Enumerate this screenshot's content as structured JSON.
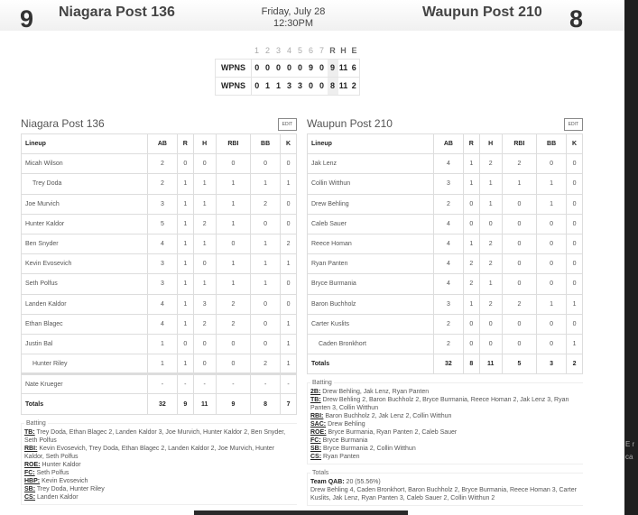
{
  "header": {
    "home_score": "9",
    "home_team": "Niagara Post 136",
    "away_team": "Waupun Post 210",
    "away_score": "8",
    "date": "Friday, July 28",
    "time": "12:30PM"
  },
  "linescore": {
    "innings": [
      "1",
      "2",
      "3",
      "4",
      "5",
      "6",
      "7"
    ],
    "totals_headers": [
      "R",
      "H",
      "E"
    ],
    "rows": [
      {
        "team": "WPNS",
        "innings": [
          "0",
          "0",
          "0",
          "0",
          "0",
          "9",
          "0"
        ],
        "R": "9",
        "H": "11",
        "E": "6"
      },
      {
        "team": "WPNS",
        "innings": [
          "0",
          "1",
          "1",
          "3",
          "3",
          "0",
          "0"
        ],
        "R": "8",
        "H": "11",
        "E": "2"
      }
    ]
  },
  "columns": [
    "Lineup",
    "AB",
    "R",
    "H",
    "RBI",
    "BB",
    "K"
  ],
  "edit_label": "EDIT",
  "home": {
    "title": "Niagara Post 136",
    "rows": [
      [
        "Micah Wilson",
        "2",
        "0",
        "0",
        "0",
        "0",
        "0"
      ],
      [
        "Trey Doda",
        "2",
        "1",
        "1",
        "1",
        "1",
        "1"
      ],
      [
        "Joe Murvich",
        "3",
        "1",
        "1",
        "1",
        "2",
        "0"
      ],
      [
        "Hunter Kaldor",
        "5",
        "1",
        "2",
        "1",
        "0",
        "0"
      ],
      [
        "Ben Snyder",
        "4",
        "1",
        "1",
        "0",
        "1",
        "2"
      ],
      [
        "Kevin Evosevich",
        "3",
        "1",
        "0",
        "1",
        "1",
        "1"
      ],
      [
        "Seth Polfus",
        "3",
        "1",
        "1",
        "1",
        "1",
        "0"
      ],
      [
        "Landen Kaldor",
        "4",
        "1",
        "3",
        "2",
        "0",
        "0"
      ],
      [
        "Ethan Blagec",
        "4",
        "1",
        "2",
        "2",
        "0",
        "1"
      ],
      [
        "Justin Bal",
        "1",
        "0",
        "0",
        "0",
        "0",
        "1"
      ],
      [
        "Hunter Riley",
        "1",
        "1",
        "0",
        "0",
        "2",
        "1"
      ]
    ],
    "bench": [
      "Nate Krueger",
      "-",
      "-",
      "-",
      "-",
      "-",
      "-"
    ],
    "totals": [
      "Totals",
      "32",
      "9",
      "11",
      "9",
      "8",
      "7"
    ],
    "batting_title": "Batting",
    "batting": [
      {
        "k": "TB:",
        "v": " Trey Doda, Ethan Blagec 2, Landen Kaldor 3, Joe Murvich, Hunter Kaldor 2, Ben Snyder, Seth Polfus"
      },
      {
        "k": "RBI:",
        "v": " Kevin Evosevich, Trey Doda, Ethan Blagec 2, Landen Kaldor 2, Joe Murvich, Hunter Kaldor, Seth Polfus"
      },
      {
        "k": "ROE:",
        "v": " Hunter Kaldor"
      },
      {
        "k": "FC:",
        "v": " Seth Polfus"
      },
      {
        "k": "HBP:",
        "v": " Kevin Evosevich"
      },
      {
        "k": "SB:",
        "v": " Trey Doda, Hunter Riley"
      },
      {
        "k": "CS:",
        "v": " Landen Kaldor"
      }
    ]
  },
  "away": {
    "title": "Waupun Post 210",
    "rows": [
      [
        "Jak Lenz",
        "4",
        "1",
        "2",
        "2",
        "0",
        "0"
      ],
      [
        "Collin Witthun",
        "3",
        "1",
        "1",
        "1",
        "1",
        "0"
      ],
      [
        "Drew Behling",
        "2",
        "0",
        "1",
        "0",
        "1",
        "0"
      ],
      [
        "Caleb Sauer",
        "4",
        "0",
        "0",
        "0",
        "0",
        "0"
      ],
      [
        "Reece Homan",
        "4",
        "1",
        "2",
        "0",
        "0",
        "0"
      ],
      [
        "Ryan Panten",
        "4",
        "2",
        "2",
        "0",
        "0",
        "0"
      ],
      [
        "Bryce Burmania",
        "4",
        "2",
        "1",
        "0",
        "0",
        "0"
      ],
      [
        "Baron Buchholz",
        "3",
        "1",
        "2",
        "2",
        "1",
        "1"
      ],
      [
        "Carter Kuslits",
        "2",
        "0",
        "0",
        "0",
        "0",
        "0"
      ],
      [
        "Caden Bronkhort",
        "2",
        "0",
        "0",
        "0",
        "0",
        "1"
      ]
    ],
    "totals": [
      "Totals",
      "32",
      "8",
      "11",
      "5",
      "3",
      "2"
    ],
    "batting_title": "Batting",
    "batting": [
      {
        "k": "2B:",
        "v": " Drew Behling, Jak Lenz, Ryan Panten"
      },
      {
        "k": "TB:",
        "v": " Drew Behling 2, Baron Buchholz 2, Bryce Burmania, Reece Homan 2, Jak Lenz 3, Ryan Panten 3, Collin Witthun"
      },
      {
        "k": "RBI:",
        "v": " Baron Buchholz 2, Jak Lenz 2, Collin Witthun"
      },
      {
        "k": "SAC:",
        "v": " Drew Behling"
      },
      {
        "k": "ROE:",
        "v": " Bryce Burmania, Ryan Panten 2, Caleb Sauer"
      },
      {
        "k": "FC:",
        "v": " Bryce Burmania"
      },
      {
        "k": "SB:",
        "v": " Bryce Burmania 2, Collin Witthun"
      },
      {
        "k": "CS:",
        "v": " Ryan Panten"
      }
    ],
    "totals_title": "Totals",
    "qab_label": "Team QAB:",
    "qab_value": " 20 (55.56%)",
    "qab_players": "Drew Behling 4, Caden Bronkhort, Baron Buchholz 2, Bryce Burmania, Reece Homan 3, Carter Kuslits, Jak Lenz, Ryan Panten 3, Caleb Sauer 2, Collin Witthun 2"
  },
  "side_text": [
    "E r",
    "ca"
  ]
}
